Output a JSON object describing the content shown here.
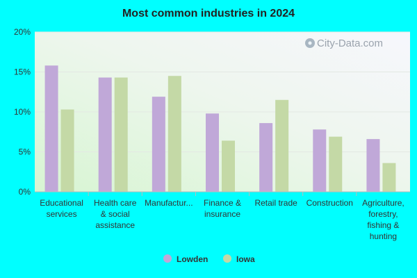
{
  "chart_data": {
    "type": "bar",
    "title": "Most common industries in 2024",
    "categories": [
      [
        "Educational",
        "services"
      ],
      [
        "Health care",
        "& social",
        "assistance"
      ],
      [
        "Manufactur..."
      ],
      [
        "Finance &",
        "insurance"
      ],
      [
        "Retail trade"
      ],
      [
        "Construction"
      ],
      [
        "Agriculture,",
        "forestry,",
        "fishing &",
        "hunting"
      ]
    ],
    "series": [
      {
        "name": "Lowden",
        "color": "#c0a8d8",
        "values": [
          15.8,
          14.3,
          11.9,
          9.8,
          8.6,
          7.8,
          6.6
        ]
      },
      {
        "name": "Iowa",
        "color": "#c4d9a6",
        "values": [
          10.3,
          14.3,
          14.5,
          6.4,
          11.5,
          6.9,
          3.6
        ]
      }
    ],
    "ylim": [
      0,
      20
    ],
    "yticks": [
      0,
      5,
      10,
      15,
      20
    ],
    "ytick_labels": [
      "0%",
      "5%",
      "10%",
      "15%",
      "20%"
    ],
    "grid": true,
    "legend_position": "bottom-center",
    "watermark": "City-Data.com"
  }
}
